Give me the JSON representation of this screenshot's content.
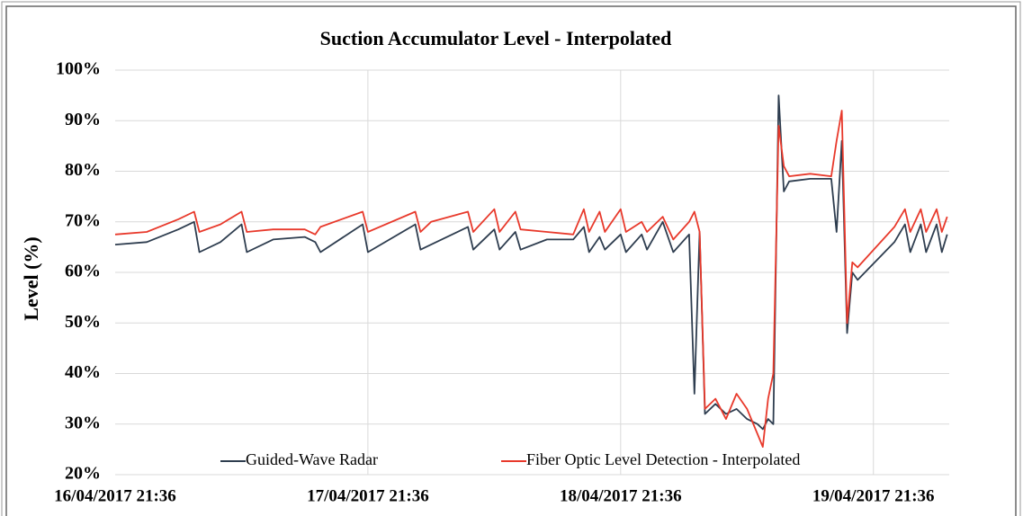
{
  "chart_data": {
    "type": "line",
    "title": "Suction Accumulator  Level - Interpolated",
    "y_label": "Level (%)",
    "x": [
      "2017-04-16T21:36",
      "2017-04-17T00:36",
      "2017-04-17T03:36",
      "2017-04-17T05:06",
      "2017-04-17T05:36",
      "2017-04-17T07:36",
      "2017-04-17T09:36",
      "2017-04-17T10:06",
      "2017-04-17T12:36",
      "2017-04-17T15:36",
      "2017-04-17T16:36",
      "2017-04-17T17:06",
      "2017-04-17T21:06",
      "2017-04-17T21:36",
      "2017-04-18T02:06",
      "2017-04-18T02:36",
      "2017-04-18T03:36",
      "2017-04-18T07:06",
      "2017-04-18T07:36",
      "2017-04-18T09:36",
      "2017-04-18T10:06",
      "2017-04-18T11:36",
      "2017-04-18T12:06",
      "2017-04-18T14:36",
      "2017-04-18T17:06",
      "2017-04-18T18:06",
      "2017-04-18T18:36",
      "2017-04-18T19:36",
      "2017-04-18T20:06",
      "2017-04-18T21:36",
      "2017-04-18T22:06",
      "2017-04-18T23:36",
      "2017-04-19T00:06",
      "2017-04-19T01:36",
      "2017-04-19T02:36",
      "2017-04-19T04:06",
      "2017-04-19T04:36",
      "2017-04-19T05:06",
      "2017-04-19T05:36",
      "2017-04-19T06:36",
      "2017-04-19T07:36",
      "2017-04-19T08:36",
      "2017-04-19T09:36",
      "2017-04-19T10:36",
      "2017-04-19T11:06",
      "2017-04-19T11:36",
      "2017-04-19T12:06",
      "2017-04-19T12:36",
      "2017-04-19T13:06",
      "2017-04-19T13:36",
      "2017-04-19T15:36",
      "2017-04-19T17:36",
      "2017-04-19T18:06",
      "2017-04-19T18:36",
      "2017-04-19T19:06",
      "2017-04-19T19:36",
      "2017-04-19T20:06",
      "2017-04-19T23:36",
      "2017-04-20T00:36",
      "2017-04-20T01:06",
      "2017-04-20T02:06",
      "2017-04-20T02:36",
      "2017-04-20T03:36",
      "2017-04-20T04:06",
      "2017-04-20T04:36"
    ],
    "series": [
      {
        "name": "Guided-Wave Radar",
        "color": "#2e3d4f",
        "values": [
          65.5,
          66,
          68.5,
          70,
          64,
          66,
          69.5,
          64,
          66.5,
          67,
          66,
          64,
          69.5,
          64,
          69.5,
          64.5,
          65.5,
          69,
          64.5,
          68.5,
          64.5,
          68,
          64.5,
          66.5,
          66.5,
          69,
          64,
          67,
          64.5,
          67.5,
          64,
          67.5,
          64.5,
          70,
          64,
          67.5,
          36,
          68,
          32,
          34,
          32,
          33,
          31,
          30,
          29,
          31,
          30,
          95,
          76,
          78,
          78.5,
          78.5,
          68,
          86,
          48,
          60,
          58.5,
          66,
          69.5,
          64,
          69.5,
          64,
          69.5,
          64,
          67.5
        ]
      },
      {
        "name": "Fiber Optic Level Detection - Interpolated",
        "color": "#e8392b",
        "values": [
          67.5,
          68,
          70.5,
          72,
          68,
          69.5,
          72,
          68,
          68.5,
          68.5,
          67.5,
          69,
          72,
          68,
          72,
          68,
          70,
          72,
          68,
          72.5,
          68,
          72,
          68.5,
          68,
          67.5,
          72.5,
          68,
          72,
          68,
          72.5,
          68,
          70,
          68,
          71,
          66.5,
          70,
          72,
          68,
          33,
          35,
          31,
          36,
          33,
          28,
          25.5,
          35,
          40,
          89,
          81,
          79,
          79.5,
          79,
          86,
          92,
          50,
          62,
          61,
          69,
          72.5,
          68,
          72.5,
          68,
          72.5,
          68,
          71
        ]
      }
    ],
    "xlim": [
      "2017-04-16T21:36",
      "2017-04-20T04:48"
    ],
    "xticks": [
      {
        "value": "2017-04-16T21:36",
        "label": "16/04/2017 21:36"
      },
      {
        "value": "2017-04-17T21:36",
        "label": "17/04/2017 21:36"
      },
      {
        "value": "2017-04-18T21:36",
        "label": "18/04/2017 21:36"
      },
      {
        "value": "2017-04-19T21:36",
        "label": "19/04/2017 21:36"
      }
    ],
    "ylim": [
      20,
      100
    ],
    "yticks": [
      {
        "value": 20,
        "label": "20%"
      },
      {
        "value": 30,
        "label": "30%"
      },
      {
        "value": 40,
        "label": "40%"
      },
      {
        "value": 50,
        "label": "50%"
      },
      {
        "value": 60,
        "label": "60%"
      },
      {
        "value": 70,
        "label": "70%"
      },
      {
        "value": 80,
        "label": "80%"
      },
      {
        "value": 90,
        "label": "90%"
      },
      {
        "value": 100,
        "label": "100%"
      }
    ],
    "grid": true,
    "legend": "bottom"
  }
}
